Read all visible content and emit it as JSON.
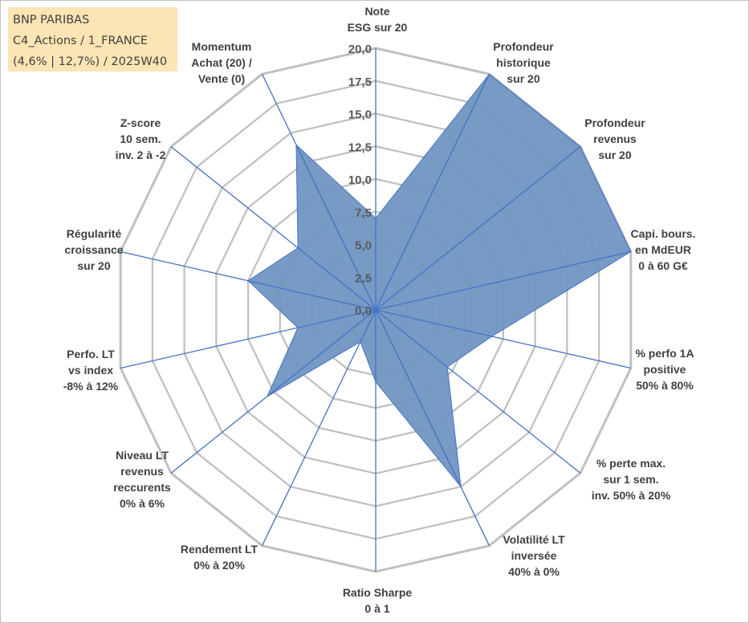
{
  "header": {
    "title_lines": [
      "BNP PARIBAS",
      "C4_Actions / 1_FRANCE",
      "(4,6% | 12,7%) / 2025W40"
    ]
  },
  "chart_data": {
    "type": "radar",
    "rmin": 0,
    "rmax": 20,
    "ticks": [
      "0,0",
      "2,5",
      "5,0",
      "7,5",
      "10,0",
      "12,5",
      "15,0",
      "17,5",
      "20,0"
    ],
    "tick_values": [
      0,
      2.5,
      5,
      7.5,
      10,
      12.5,
      15,
      17.5,
      20
    ],
    "axes": [
      {
        "lines": [
          "Note",
          "ESG sur 20"
        ]
      },
      {
        "lines": [
          "Profondeur",
          "historique",
          "sur 20"
        ]
      },
      {
        "lines": [
          "Profondeur",
          "revenus",
          "sur 20"
        ]
      },
      {
        "lines": [
          "Capi. bours.",
          "en MdEUR",
          "0 à 60 G€"
        ]
      },
      {
        "lines": [
          "% perfo 1A",
          "positive",
          "50% à 80%"
        ]
      },
      {
        "lines": [
          "% perte max.",
          "sur 1 sem.",
          "inv. 50% à 20%"
        ]
      },
      {
        "lines": [
          "Volatilité LT",
          "inversée",
          "40% à 0%"
        ]
      },
      {
        "lines": [
          "Ratio Sharpe",
          "0 à 1"
        ]
      },
      {
        "lines": [
          "Rendement LT",
          "0% à 20%"
        ]
      },
      {
        "lines": [
          "Niveau LT",
          "revenus",
          "reccurents",
          "0% à 6%"
        ]
      },
      {
        "lines": [
          "Perfo. LT",
          "vs index",
          "-8% à 12%"
        ]
      },
      {
        "lines": [
          "Régularité",
          "croissance",
          "sur 20"
        ]
      },
      {
        "lines": [
          "Z-score",
          "10 sem.",
          "inv. 2 à -2"
        ]
      },
      {
        "lines": [
          "Momentum",
          "Achat (20) /",
          "Vente (0)"
        ]
      }
    ],
    "series": [
      {
        "name": "BNP PARIBAS",
        "values": [
          7.0,
          20.0,
          20.0,
          20.0,
          9.1,
          7.0,
          15.0,
          5.5,
          2.7,
          10.6,
          6.1,
          10.0,
          7.6,
          14.0
        ]
      }
    ],
    "colors": {
      "fill": "#7096c2",
      "line": "#4472c4",
      "spoke": "#4472c4",
      "grid": "#bfbfbf",
      "outer": "#c0c0c0"
    }
  }
}
